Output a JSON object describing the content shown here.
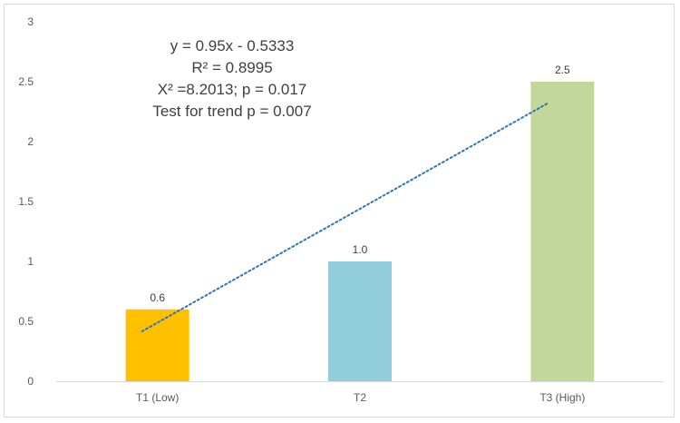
{
  "chart_data": {
    "type": "bar",
    "categories": [
      "T1 (Low)",
      "T2",
      "T3 (High)"
    ],
    "values": [
      0.6,
      1.0,
      2.5
    ],
    "value_labels": [
      "0.6",
      "1.0",
      "2.5"
    ],
    "bar_colors": [
      "#ffc000",
      "#92cddc",
      "#c4d79b"
    ],
    "ylim": [
      0,
      3
    ],
    "y_ticks": [
      0,
      0.5,
      1,
      1.5,
      2,
      2.5,
      3
    ],
    "y_tick_labels": [
      "0",
      "0.5",
      "1",
      "1.5",
      "2",
      "2.5",
      "3"
    ],
    "grid": false,
    "trendline": {
      "type": "linear",
      "slope": 0.95,
      "intercept": -0.5333,
      "style": "dotted",
      "color": "#2e75b6"
    },
    "annotations": [
      "y = 0.95x - 0.5333",
      "R² = 0.8995",
      "X² =8.2013;  p = 0.017",
      "Test for trend p = 0.007"
    ],
    "title": "",
    "xlabel": "",
    "ylabel": ""
  }
}
